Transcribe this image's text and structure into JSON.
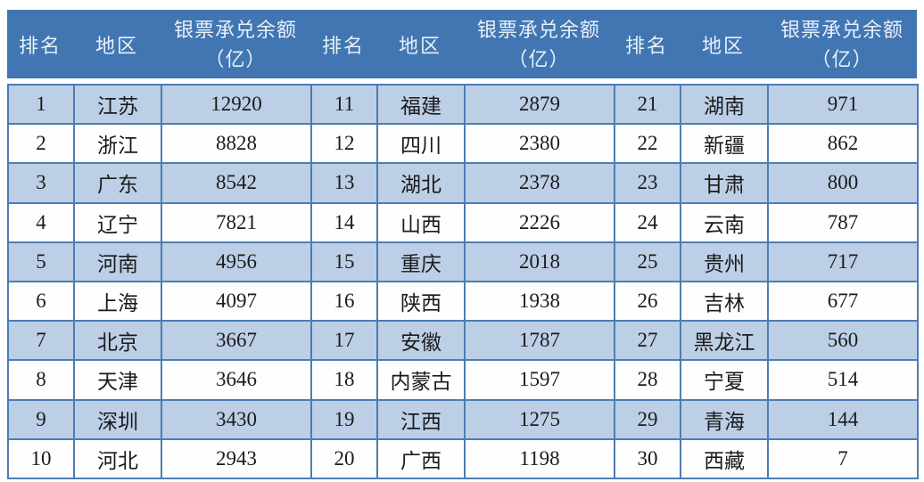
{
  "colors": {
    "header_bg": "#4176b2",
    "header_text": "#e8f0f9",
    "row_alt_bg": "#bccfe6",
    "row_bg": "#fefefe",
    "border": "#4c7db4",
    "body_text": "#1b1b1b"
  },
  "header": {
    "groups": [
      {
        "rank": "排名",
        "region": "地区",
        "balance_line1": "银票承兑余额",
        "balance_line2": "（亿）"
      },
      {
        "rank": "排名",
        "region": "地区",
        "balance_line1": "银票承兑余额",
        "balance_line2": "（亿）"
      },
      {
        "rank": "排名",
        "region": "地区",
        "balance_line1": "银票承兑余额",
        "balance_line2": "（亿）"
      }
    ]
  },
  "rows": [
    {
      "c0": "1",
      "c1": "江苏",
      "c2": "12920",
      "c3": "11",
      "c4": "福建",
      "c5": "2879",
      "c6": "21",
      "c7": "湖南",
      "c8": "971"
    },
    {
      "c0": "2",
      "c1": "浙江",
      "c2": "8828",
      "c3": "12",
      "c4": "四川",
      "c5": "2380",
      "c6": "22",
      "c7": "新疆",
      "c8": "862"
    },
    {
      "c0": "3",
      "c1": "广东",
      "c2": "8542",
      "c3": "13",
      "c4": "湖北",
      "c5": "2378",
      "c6": "23",
      "c7": "甘肃",
      "c8": "800"
    },
    {
      "c0": "4",
      "c1": "辽宁",
      "c2": "7821",
      "c3": "14",
      "c4": "山西",
      "c5": "2226",
      "c6": "24",
      "c7": "云南",
      "c8": "787"
    },
    {
      "c0": "5",
      "c1": "河南",
      "c2": "4956",
      "c3": "15",
      "c4": "重庆",
      "c5": "2018",
      "c6": "25",
      "c7": "贵州",
      "c8": "717"
    },
    {
      "c0": "6",
      "c1": "上海",
      "c2": "4097",
      "c3": "16",
      "c4": "陕西",
      "c5": "1938",
      "c6": "26",
      "c7": "吉林",
      "c8": "677"
    },
    {
      "c0": "7",
      "c1": "北京",
      "c2": "3667",
      "c3": "17",
      "c4": "安徽",
      "c5": "1787",
      "c6": "27",
      "c7": "黑龙江",
      "c8": "560"
    },
    {
      "c0": "8",
      "c1": "天津",
      "c2": "3646",
      "c3": "18",
      "c4": "内蒙古",
      "c5": "1597",
      "c6": "28",
      "c7": "宁夏",
      "c8": "514"
    },
    {
      "c0": "9",
      "c1": "深圳",
      "c2": "3430",
      "c3": "19",
      "c4": "江西",
      "c5": "1275",
      "c6": "29",
      "c7": "青海",
      "c8": "144"
    },
    {
      "c0": "10",
      "c1": "河北",
      "c2": "2943",
      "c3": "20",
      "c4": "广西",
      "c5": "1198",
      "c6": "30",
      "c7": "西藏",
      "c8": "7"
    }
  ],
  "chart_data": {
    "type": "table",
    "columns": [
      "排名",
      "地区",
      "银票承兑余额（亿）"
    ],
    "rows": [
      [
        1,
        "江苏",
        12920
      ],
      [
        2,
        "浙江",
        8828
      ],
      [
        3,
        "广东",
        8542
      ],
      [
        4,
        "辽宁",
        7821
      ],
      [
        5,
        "河南",
        4956
      ],
      [
        6,
        "上海",
        4097
      ],
      [
        7,
        "北京",
        3667
      ],
      [
        8,
        "天津",
        3646
      ],
      [
        9,
        "深圳",
        3430
      ],
      [
        10,
        "河北",
        2943
      ],
      [
        11,
        "福建",
        2879
      ],
      [
        12,
        "四川",
        2380
      ],
      [
        13,
        "湖北",
        2378
      ],
      [
        14,
        "山西",
        2226
      ],
      [
        15,
        "重庆",
        2018
      ],
      [
        16,
        "陕西",
        1938
      ],
      [
        17,
        "安徽",
        1787
      ],
      [
        18,
        "内蒙古",
        1597
      ],
      [
        19,
        "江西",
        1275
      ],
      [
        20,
        "广西",
        1198
      ],
      [
        21,
        "湖南",
        971
      ],
      [
        22,
        "新疆",
        862
      ],
      [
        23,
        "甘肃",
        800
      ],
      [
        24,
        "云南",
        787
      ],
      [
        25,
        "贵州",
        717
      ],
      [
        26,
        "吉林",
        677
      ],
      [
        27,
        "黑龙江",
        560
      ],
      [
        28,
        "宁夏",
        514
      ],
      [
        29,
        "青海",
        144
      ],
      [
        30,
        "西藏",
        7
      ]
    ]
  }
}
